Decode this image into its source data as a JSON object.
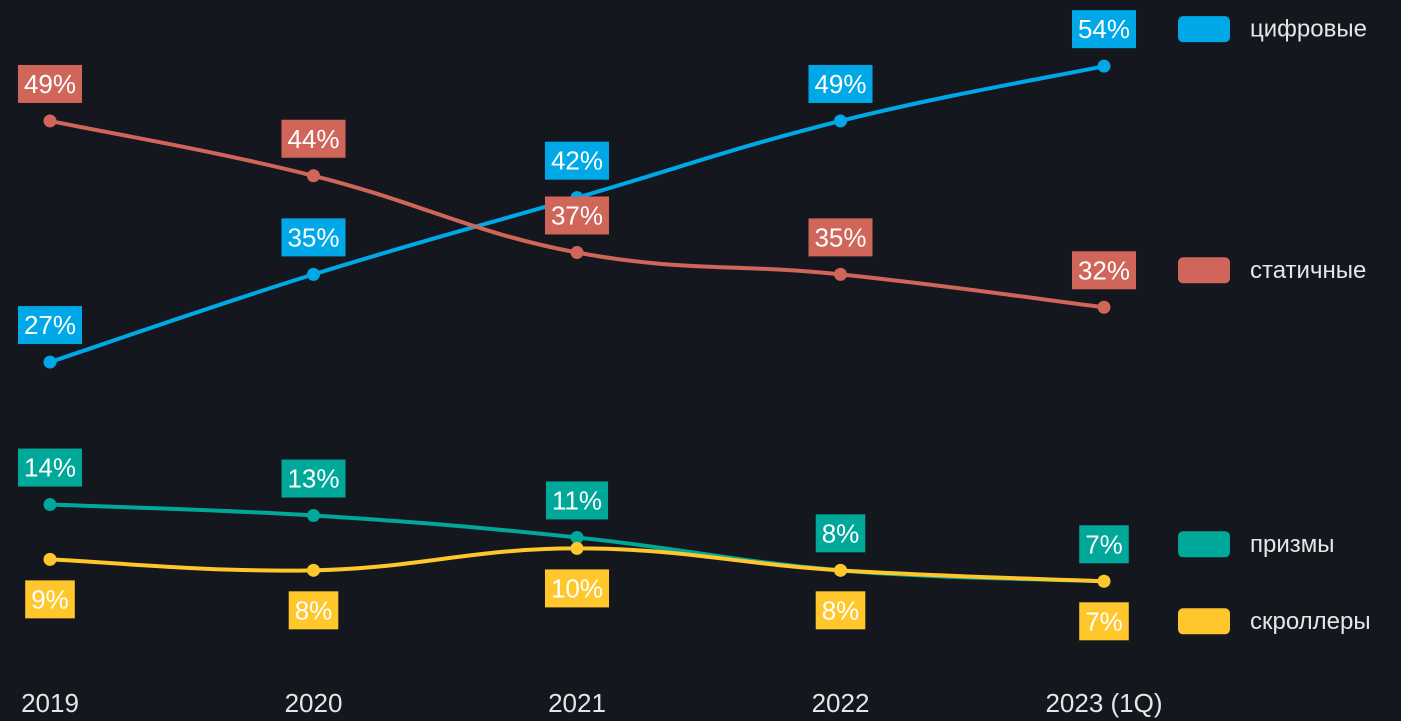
{
  "chart_data": {
    "type": "line",
    "categories": [
      "2019",
      "2020",
      "2021",
      "2022",
      "2023 (1Q)"
    ],
    "series": [
      {
        "name": "цифровые",
        "color": "#00a8e8",
        "values": [
          27,
          35,
          42,
          49,
          54
        ],
        "value_labels": [
          "27%",
          "35%",
          "42%",
          "49%",
          "54%"
        ]
      },
      {
        "name": "статичные",
        "color": "#d0665a",
        "values": [
          49,
          44,
          37,
          35,
          32
        ],
        "value_labels": [
          "49%",
          "44%",
          "37%",
          "35%",
          "32%"
        ]
      },
      {
        "name": "призмы",
        "color": "#00a89a",
        "values": [
          14,
          13,
          11,
          8,
          7
        ],
        "value_labels": [
          "14%",
          "13%",
          "11%",
          "8%",
          "7%"
        ]
      },
      {
        "name": "скроллеры",
        "color": "#ffc72c",
        "values": [
          9,
          8,
          10,
          8,
          7
        ],
        "value_labels": [
          "9%",
          "8%",
          "10%",
          "8%",
          "7%"
        ]
      }
    ],
    "legend": "right"
  }
}
